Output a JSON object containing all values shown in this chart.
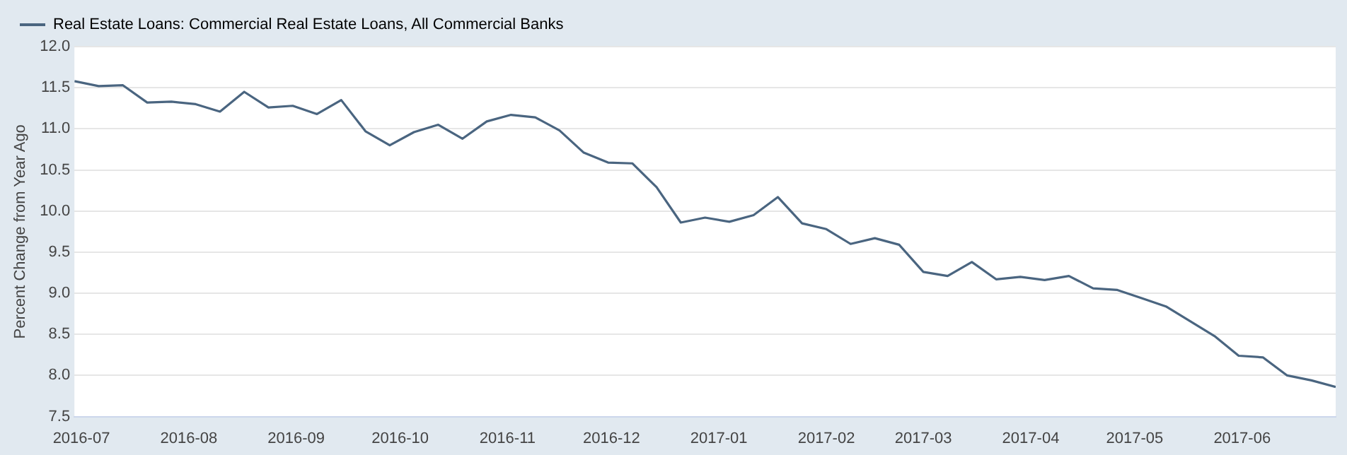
{
  "chart_data": {
    "type": "line",
    "ylabel": "Percent Change from Year Ago",
    "x": [
      "2016-06-29",
      "2016-07-06",
      "2016-07-13",
      "2016-07-20",
      "2016-07-27",
      "2016-08-03",
      "2016-08-10",
      "2016-08-17",
      "2016-08-24",
      "2016-08-31",
      "2016-09-07",
      "2016-09-14",
      "2016-09-21",
      "2016-09-28",
      "2016-10-05",
      "2016-10-12",
      "2016-10-19",
      "2016-10-26",
      "2016-11-02",
      "2016-11-09",
      "2016-11-16",
      "2016-11-23",
      "2016-11-30",
      "2016-12-07",
      "2016-12-14",
      "2016-12-21",
      "2016-12-28",
      "2017-01-04",
      "2017-01-11",
      "2017-01-18",
      "2017-01-25",
      "2017-02-01",
      "2017-02-08",
      "2017-02-15",
      "2017-02-22",
      "2017-03-01",
      "2017-03-08",
      "2017-03-15",
      "2017-03-22",
      "2017-03-29",
      "2017-04-05",
      "2017-04-12",
      "2017-04-19",
      "2017-04-26",
      "2017-05-03",
      "2017-05-10",
      "2017-05-17",
      "2017-05-24",
      "2017-05-31",
      "2017-06-07",
      "2017-06-14",
      "2017-06-21",
      "2017-06-28"
    ],
    "series": [
      {
        "name": "Real Estate Loans: Commercial Real Estate Loans, All Commercial Banks",
        "color": "#4a6580",
        "values": [
          11.58,
          11.52,
          11.53,
          11.32,
          11.33,
          11.3,
          11.21,
          11.45,
          11.26,
          11.28,
          11.18,
          11.35,
          10.97,
          10.8,
          10.96,
          11.05,
          10.88,
          11.09,
          11.17,
          11.14,
          10.98,
          10.71,
          10.59,
          10.58,
          10.29,
          9.86,
          9.92,
          9.87,
          9.95,
          10.17,
          9.85,
          9.78,
          9.6,
          9.67,
          9.59,
          9.26,
          9.21,
          9.38,
          9.17,
          9.2,
          9.16,
          9.21,
          9.06,
          9.04,
          8.94,
          8.84,
          8.66,
          8.48,
          8.24,
          8.22,
          8.0,
          7.94,
          7.86
        ]
      }
    ],
    "xlim": [
      "2016-06-29",
      "2017-06-28"
    ],
    "xticks": [
      "2016-07",
      "2016-08",
      "2016-09",
      "2016-10",
      "2016-11",
      "2016-12",
      "2017-01",
      "2017-02",
      "2017-03",
      "2017-04",
      "2017-05",
      "2017-06"
    ],
    "ylim": [
      7.5,
      12.0
    ],
    "yticks": [
      {
        "value": 7.5,
        "label": "7.5"
      },
      {
        "value": 8.0,
        "label": "8.0"
      },
      {
        "value": 8.5,
        "label": "8.5"
      },
      {
        "value": 9.0,
        "label": "9.0"
      },
      {
        "value": 9.5,
        "label": "9.5"
      },
      {
        "value": 10.0,
        "label": "10.0"
      },
      {
        "value": 10.5,
        "label": "10.5"
      },
      {
        "value": 11.0,
        "label": "11.0"
      },
      {
        "value": 11.5,
        "label": "11.5"
      },
      {
        "value": 12.0,
        "label": "12.0"
      }
    ],
    "grid": "y",
    "legend": "top left",
    "marker": "none",
    "line_style": "solid"
  }
}
